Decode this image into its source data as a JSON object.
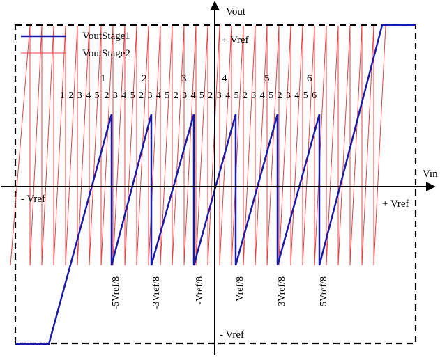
{
  "legend": {
    "stage1_label": "VoutStage1",
    "stage2_label": "VoutStage2"
  },
  "axes": {
    "y_label": "Vout",
    "x_label": "Vin",
    "pos_vref_top": "+ Vref",
    "neg_vref_bottom": "- Vref",
    "neg_vref_left": "-  Vref",
    "pos_vref_right": "+ Vref"
  },
  "stage1_segment_labels": [
    "1",
    "2",
    "3",
    "4",
    "5",
    "6"
  ],
  "stage2_sub_labels": [
    [
      "1",
      "2",
      "3",
      "4",
      "5"
    ],
    [
      "2",
      "3",
      "4",
      "5"
    ],
    [
      "2",
      "3",
      "4",
      "5"
    ],
    [
      "2",
      "3",
      "4",
      "5"
    ],
    [
      "2",
      "3",
      "4",
      "5"
    ],
    [
      "2",
      "3",
      "4",
      "5"
    ],
    [
      "2",
      "3",
      "4",
      "5",
      "6"
    ]
  ],
  "threshold_labels": [
    "-5Vref/8",
    "-3Vref/8",
    "-Vref/8",
    "Vref/8",
    "3Vref/8",
    "5Vref/8"
  ],
  "colors": {
    "stage1": "#1a1aa8",
    "stage2": "#e84040",
    "axis": "#000000",
    "frame": "#000000"
  }
}
